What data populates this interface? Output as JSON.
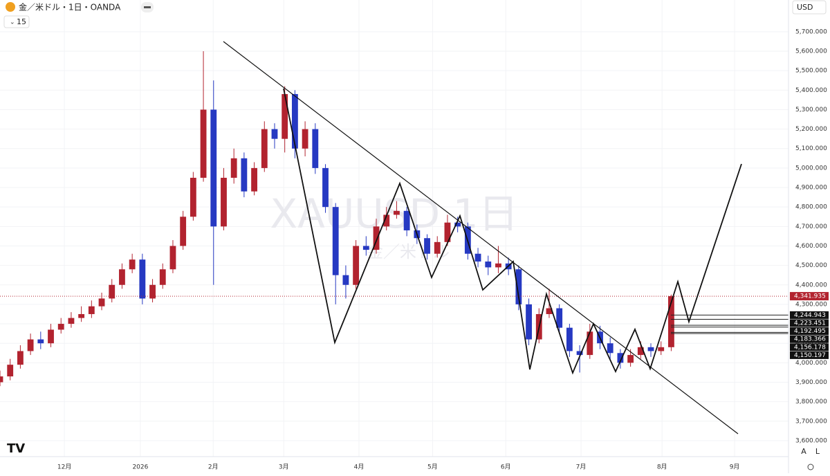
{
  "chart_data": {
    "type": "candlestick",
    "title": "金／米ドル・1日・OANDA",
    "interval": "15",
    "currency": "USD",
    "scale_buttons": [
      "A",
      "L"
    ],
    "watermark": "XAUUSD 1日",
    "watermark_sub": "金／米ドル",
    "up_color": "#b2232f",
    "down_color": "#2639c2",
    "grid": true,
    "x": [
      0,
      3,
      6,
      9,
      12,
      15,
      18,
      21,
      24,
      27,
      30,
      33,
      36,
      39,
      42,
      45,
      48,
      51,
      54,
      57,
      60,
      63,
      66,
      69,
      72,
      75,
      78,
      81,
      84,
      87,
      90,
      93,
      96,
      99,
      102,
      105,
      108,
      111,
      114,
      117,
      120,
      123,
      126,
      129,
      132,
      135,
      138,
      141,
      144,
      147,
      150,
      153,
      156,
      159,
      162,
      165,
      168,
      171,
      174,
      177,
      180,
      183,
      186,
      189,
      192,
      195,
      198
    ],
    "open": [
      3900,
      3930,
      3990,
      4060,
      4120,
      4100,
      4170,
      4200,
      4230,
      4250,
      4290,
      4330,
      4400,
      4480,
      4530,
      4330,
      4400,
      4480,
      4600,
      4750,
      4950,
      5300,
      4700,
      4950,
      5050,
      4880,
      5000,
      5200,
      5150,
      5380,
      5100,
      5200,
      5000,
      4800,
      4450,
      4400,
      4600,
      4580,
      4700,
      4760,
      4780,
      4680,
      4640,
      4560,
      4620,
      4720,
      4700,
      4560,
      4520,
      4490,
      4510,
      4480,
      4300,
      4120,
      4250,
      4280,
      4180,
      4060,
      4040,
      4160,
      4100,
      4050,
      4000,
      4040,
      4080,
      4060,
      4080
    ],
    "high": [
      3960,
      4020,
      4090,
      4150,
      4160,
      4200,
      4230,
      4260,
      4290,
      4320,
      4360,
      4430,
      4510,
      4560,
      4560,
      4430,
      4510,
      4630,
      4780,
      4980,
      5600,
      5450,
      5000,
      5100,
      5080,
      5030,
      5240,
      5230,
      5420,
      5400,
      5240,
      5230,
      5020,
      4820,
      4500,
      4630,
      4650,
      4740,
      4800,
      4830,
      4800,
      4710,
      4660,
      4650,
      4760,
      4750,
      4720,
      4590,
      4550,
      4600,
      4540,
      4500,
      4330,
      4280,
      4380,
      4300,
      4200,
      4090,
      4200,
      4190,
      4130,
      4070,
      4070,
      4110,
      4100,
      4110,
      4350
    ],
    "low": [
      3880,
      3910,
      3970,
      4040,
      4070,
      4080,
      4150,
      4180,
      4210,
      4230,
      4270,
      4310,
      4380,
      4460,
      4300,
      4310,
      4380,
      4460,
      4580,
      4730,
      4930,
      4400,
      4680,
      4920,
      4850,
      4860,
      4980,
      5100,
      5080,
      5050,
      5060,
      4970,
      4770,
      4300,
      4330,
      4380,
      4550,
      4560,
      4680,
      4740,
      4650,
      4610,
      4530,
      4540,
      4600,
      4670,
      4530,
      4490,
      4450,
      4460,
      4450,
      4270,
      4090,
      4100,
      4230,
      4150,
      4030,
      3950,
      4020,
      4070,
      4020,
      3970,
      3980,
      4020,
      4030,
      4040,
      4060
    ],
    "close": [
      3930,
      3990,
      4060,
      4120,
      4100,
      4170,
      4200,
      4230,
      4250,
      4290,
      4330,
      4400,
      4480,
      4530,
      4330,
      4400,
      4480,
      4600,
      4750,
      4950,
      5300,
      4700,
      4950,
      5050,
      4880,
      5000,
      5200,
      5150,
      5380,
      5100,
      5200,
      5000,
      4800,
      4450,
      4400,
      4600,
      4580,
      4700,
      4760,
      4780,
      4680,
      4640,
      4560,
      4620,
      4720,
      4700,
      4560,
      4520,
      4490,
      4510,
      4480,
      4300,
      4120,
      4250,
      4280,
      4180,
      4060,
      4040,
      4160,
      4100,
      4050,
      4000,
      4040,
      4080,
      4060,
      4080,
      4342
    ],
    "xlim": [
      0,
      232.6
    ],
    "xticks": [
      {
        "value": 19,
        "label": "12月"
      },
      {
        "value": 41.4,
        "label": "2026"
      },
      {
        "value": 62.9,
        "label": "2月"
      },
      {
        "value": 83.7,
        "label": "3月"
      },
      {
        "value": 105.9,
        "label": "4月"
      },
      {
        "value": 127.6,
        "label": "5月"
      },
      {
        "value": 149.2,
        "label": "6月"
      },
      {
        "value": 171.4,
        "label": "7月"
      },
      {
        "value": 195.3,
        "label": "8月"
      },
      {
        "value": 216.7,
        "label": "9月"
      }
    ],
    "ylim": [
      3518,
      5863
    ],
    "yticks": [
      {
        "value": 3600,
        "label": "3,600.000"
      },
      {
        "value": 3700,
        "label": "3,700.000"
      },
      {
        "value": 3800,
        "label": "3,800.000"
      },
      {
        "value": 3900,
        "label": "3,900.000"
      },
      {
        "value": 4000,
        "label": "4,000.000"
      },
      {
        "value": 4100,
        "label": "4,100.000"
      },
      {
        "value": 4200,
        "label": "4,200.000"
      },
      {
        "value": 4300,
        "label": "4,300.000"
      },
      {
        "value": 4400,
        "label": "4,400.000"
      },
      {
        "value": 4500,
        "label": "4,500.000"
      },
      {
        "value": 4600,
        "label": "4,600.000"
      },
      {
        "value": 4700,
        "label": "4,700.000"
      },
      {
        "value": 4800,
        "label": "4,800.000"
      },
      {
        "value": 4900,
        "label": "4,900.000"
      },
      {
        "value": 5000,
        "label": "5,000.000"
      },
      {
        "value": 5100,
        "label": "5,100.000"
      },
      {
        "value": 5200,
        "label": "5,200.000"
      },
      {
        "value": 5300,
        "label": "5,300.000"
      },
      {
        "value": 5400,
        "label": "5,400.000"
      },
      {
        "value": 5500,
        "label": "5,500.000"
      },
      {
        "value": 5600,
        "label": "5,600.000"
      },
      {
        "value": 5700,
        "label": "5,700.000"
      }
    ],
    "last_price": {
      "value": 4341.935,
      "label": "4,341.935"
    },
    "levels": [
      {
        "value": 4244.943,
        "label": "4,244.943"
      },
      {
        "value": 4223.451,
        "label": "4,223.451"
      },
      {
        "value": 4192.495,
        "label": "4,192.495"
      },
      {
        "value": 4183.366,
        "label": "4,183.366"
      },
      {
        "value": 4156.178,
        "label": "4,156.178"
      },
      {
        "value": 4150.197,
        "label": "4,150.197"
      }
    ]
  }
}
